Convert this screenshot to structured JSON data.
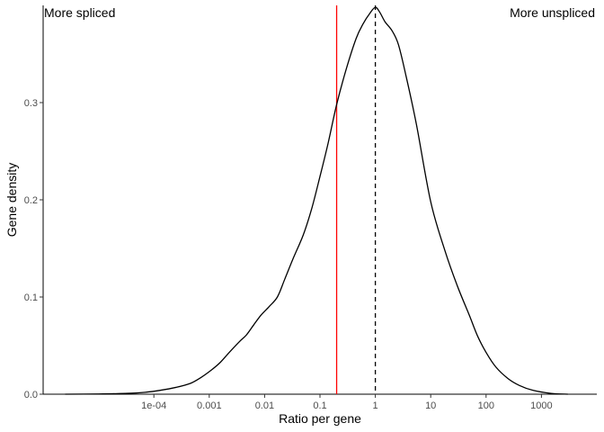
{
  "chart_data": {
    "type": "area",
    "title": "",
    "xlabel": "Ratio per gene",
    "ylabel": "Gene density",
    "x_scale": "log10",
    "x_range": [
      1e-06,
      10000
    ],
    "ylim": [
      0,
      0.4
    ],
    "grid": false,
    "legend": "none",
    "x_ticks": [
      {
        "value": 0.0001,
        "label": "1e-04"
      },
      {
        "value": 0.001,
        "label": "0.001"
      },
      {
        "value": 0.01,
        "label": "0.01"
      },
      {
        "value": 0.1,
        "label": "0.1"
      },
      {
        "value": 1,
        "label": "1"
      },
      {
        "value": 10,
        "label": "10"
      },
      {
        "value": 100,
        "label": "100"
      },
      {
        "value": 1000,
        "label": "1000"
      }
    ],
    "y_ticks": [
      {
        "value": 0.0,
        "label": "0.0"
      },
      {
        "value": 0.1,
        "label": "0.1"
      },
      {
        "value": 0.2,
        "label": "0.2"
      },
      {
        "value": 0.3,
        "label": "0.3"
      }
    ],
    "series": [
      {
        "color": "#000000",
        "x": [
          2.5e-06,
          1e-05,
          3e-05,
          7e-05,
          0.00013,
          0.00025,
          0.00045,
          0.0007,
          0.0011,
          0.0016,
          0.0023,
          0.0035,
          0.0047,
          0.0063,
          0.0085,
          0.012,
          0.017,
          0.023,
          0.033,
          0.05,
          0.071,
          0.1,
          0.14,
          0.2,
          0.3,
          0.45,
          0.6,
          0.8,
          1,
          1.2,
          1.5,
          2,
          2.6,
          3.5,
          5.5,
          10,
          18,
          30,
          50,
          70,
          100,
          150,
          250,
          400,
          700,
          1500,
          3000
        ],
        "y": [
          0.0,
          0.0002,
          0.0008,
          0.002,
          0.004,
          0.007,
          0.011,
          0.017,
          0.025,
          0.033,
          0.043,
          0.054,
          0.061,
          0.071,
          0.081,
          0.09,
          0.1,
          0.118,
          0.14,
          0.164,
          0.191,
          0.224,
          0.258,
          0.298,
          0.335,
          0.366,
          0.381,
          0.392,
          0.398,
          0.393,
          0.383,
          0.374,
          0.36,
          0.33,
          0.278,
          0.198,
          0.148,
          0.112,
          0.081,
          0.06,
          0.043,
          0.028,
          0.016,
          0.009,
          0.004,
          0.0008,
          0.0
        ]
      }
    ],
    "reference_lines": [
      {
        "x": 0.2,
        "color": "#ff0000",
        "style": "solid"
      },
      {
        "x": 1,
        "color": "#000000",
        "style": "dashed"
      }
    ],
    "annotations": [
      {
        "text": "More spliced",
        "position": "top-left"
      },
      {
        "text": "More unspliced",
        "position": "top-right"
      }
    ]
  }
}
